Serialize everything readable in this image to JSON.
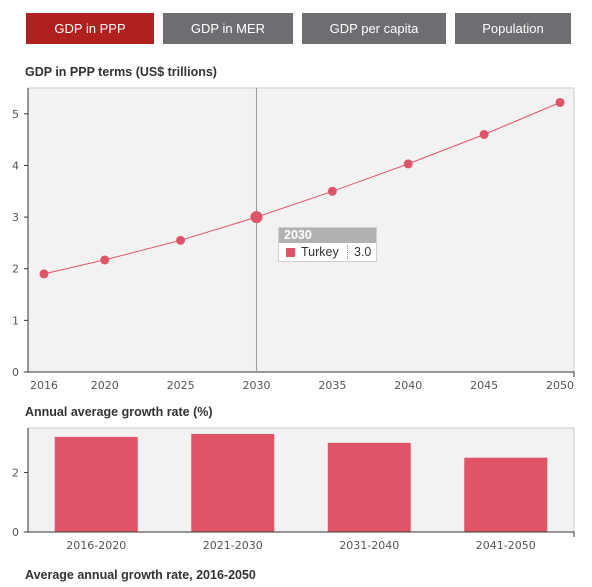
{
  "tabs": [
    {
      "label": "GDP in PPP",
      "active": true
    },
    {
      "label": "GDP in MER",
      "active": false
    },
    {
      "label": "GDP per capita",
      "active": false
    },
    {
      "label": "Population",
      "active": false
    }
  ],
  "colors": {
    "active_tab": "#b0201e",
    "inactive_tab": "#6d6e71",
    "series": "#e05468",
    "plot_border": "#cccccc",
    "plot_bg": "#f2f2f2"
  },
  "chart_data": [
    {
      "type": "line",
      "title": "GDP in PPP terms (US$ trillions)",
      "xlabel": "",
      "ylabel": "",
      "x": [
        2016,
        2020,
        2025,
        2030,
        2035,
        2040,
        2045,
        2050
      ],
      "series": [
        {
          "name": "Turkey",
          "values": [
            1.9,
            2.17,
            2.55,
            3.0,
            3.5,
            4.03,
            4.6,
            5.22
          ]
        }
      ],
      "xlim": [
        2016,
        2050
      ],
      "ylim": [
        0,
        5.5
      ],
      "yticks": [
        0,
        1,
        2,
        3,
        4,
        5
      ],
      "xticks": [
        2016,
        2020,
        2025,
        2030,
        2035,
        2040,
        2045,
        2050
      ],
      "grid": false,
      "highlight": {
        "x": 2030,
        "x_label": "2030",
        "series": "Turkey",
        "value": "3.0"
      }
    },
    {
      "type": "bar",
      "title": "Annual average growth rate (%)",
      "xlabel": "",
      "ylabel": "",
      "categories": [
        "2016-2020",
        "2021-2030",
        "2031-2040",
        "2041-2050"
      ],
      "values": [
        3.2,
        3.3,
        3.0,
        2.5
      ],
      "ylim": [
        0,
        3.5
      ],
      "yticks": [
        0,
        2
      ],
      "grid": false
    }
  ],
  "footer": {
    "title": "Average annual growth rate, 2016-2050"
  }
}
